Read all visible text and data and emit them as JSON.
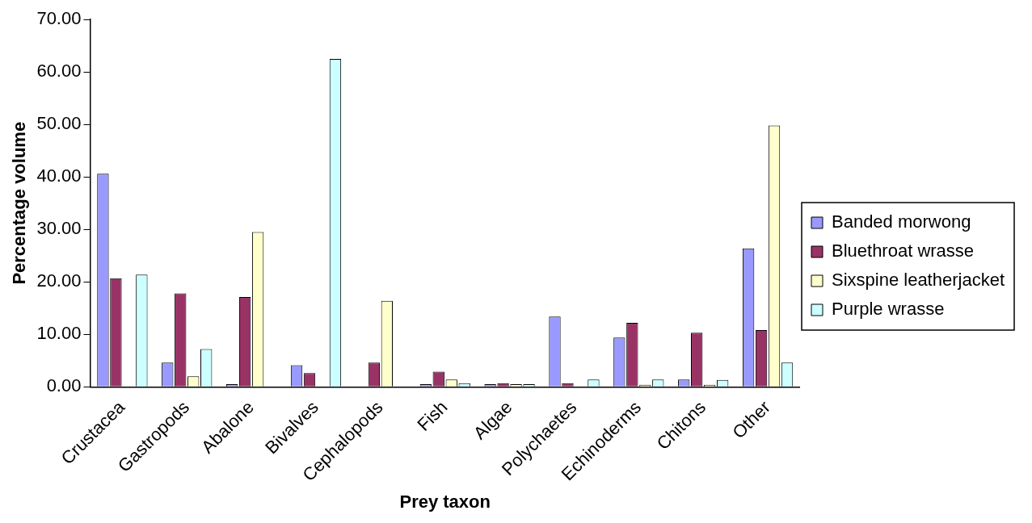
{
  "chart_data": {
    "type": "bar",
    "xlabel": "Prey taxon",
    "ylabel": "Percentage volume",
    "categories": [
      "Crustacea",
      "Gastropods",
      "Abalone",
      "Bivalves",
      "Cephalopods",
      "Fish",
      "Algae",
      "Polychaetes",
      "Echinoderms",
      "Chitons",
      "Other"
    ],
    "series": [
      {
        "name": "Banded morwong",
        "color": "#9999ff",
        "values": [
          40.6,
          4.6,
          0.5,
          4.1,
          0,
          0.5,
          0.5,
          13.4,
          9.4,
          1.4,
          26.4
        ]
      },
      {
        "name": "Bluethroat wrasse",
        "color": "#993366",
        "values": [
          20.7,
          17.8,
          17.1,
          2.6,
          4.6,
          2.9,
          0.7,
          0.7,
          12.2,
          10.3,
          10.8
        ]
      },
      {
        "name": "Sixspine leatherjacket",
        "color": "#ffffcc",
        "values": [
          0,
          2.0,
          29.5,
          0,
          16.4,
          1.4,
          0.5,
          0,
          0.4,
          0.4,
          49.8
        ]
      },
      {
        "name": "Purple wrasse",
        "color": "#ccffff",
        "values": [
          21.4,
          7.2,
          0,
          62.5,
          0,
          0.7,
          0.5,
          1.4,
          1.4,
          1.3,
          4.6
        ]
      }
    ],
    "ylim": [
      0,
      70
    ],
    "yticks": [
      {
        "value": 0,
        "label": "0.00"
      },
      {
        "value": 10,
        "label": "10.00"
      },
      {
        "value": 20,
        "label": "20.00"
      },
      {
        "value": 30,
        "label": "30.00"
      },
      {
        "value": 40,
        "label": "40.00"
      },
      {
        "value": 50,
        "label": "50.00"
      },
      {
        "value": 60,
        "label": "60.00"
      },
      {
        "value": 70,
        "label": "70.00"
      }
    ],
    "grid": false,
    "legend": "right"
  }
}
